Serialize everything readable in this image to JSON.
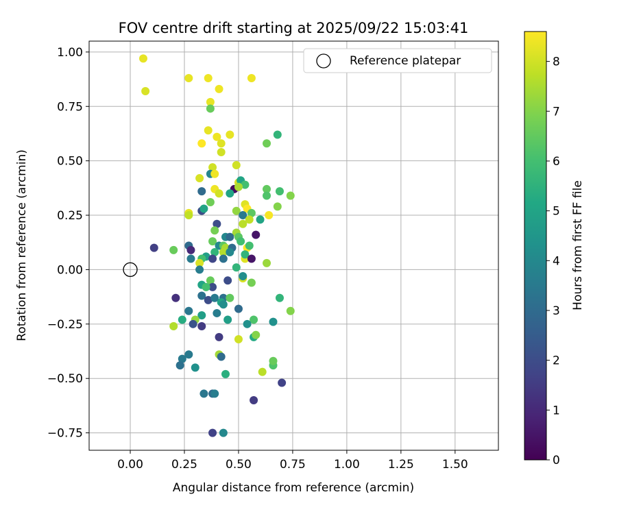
{
  "chart_data": {
    "type": "scatter",
    "title": "FOV centre drift starting at 2025/09/22 15:03:41",
    "xlabel": "Angular distance from reference (arcmin)",
    "ylabel": "Rotation from reference (arcmin)",
    "xlim": [
      -0.19,
      1.7
    ],
    "ylim": [
      -0.83,
      1.05
    ],
    "xticks": [
      0.0,
      0.25,
      0.5,
      0.75,
      1.0,
      1.25,
      1.5
    ],
    "yticks": [
      -0.75,
      -0.5,
      -0.25,
      0.0,
      0.25,
      0.5,
      0.75,
      1.0
    ],
    "xtick_labels": [
      "0.00",
      "0.25",
      "0.50",
      "0.75",
      "1.00",
      "1.25",
      "1.50"
    ],
    "ytick_labels": [
      "−0.75",
      "−0.50",
      "−0.25",
      "0.00",
      "0.25",
      "0.50",
      "0.75",
      "1.00"
    ],
    "grid": true,
    "legend": {
      "position": "upper-right",
      "label": "Reference platepar"
    },
    "reference_point": {
      "x": 0.0,
      "y": 0.0
    },
    "colorbar": {
      "label": "Hours from first FF file",
      "range": [
        0,
        8.6
      ],
      "ticks": [
        0,
        1,
        2,
        3,
        4,
        5,
        6,
        7,
        8
      ],
      "tick_labels": [
        "0",
        "1",
        "2",
        "3",
        "4",
        "5",
        "6",
        "7",
        "8"
      ],
      "colormap": "viridis"
    },
    "points": [
      {
        "x": 0.06,
        "y": 0.97,
        "h": 8.3
      },
      {
        "x": 0.07,
        "y": 0.82,
        "h": 8.1
      },
      {
        "x": 0.27,
        "y": 0.88,
        "h": 8.3
      },
      {
        "x": 0.36,
        "y": 0.88,
        "h": 8.4
      },
      {
        "x": 0.56,
        "y": 0.88,
        "h": 8.4
      },
      {
        "x": 0.41,
        "y": 0.83,
        "h": 8.4
      },
      {
        "x": 0.37,
        "y": 0.77,
        "h": 8.3
      },
      {
        "x": 0.37,
        "y": 0.74,
        "h": 6.6
      },
      {
        "x": 0.36,
        "y": 0.64,
        "h": 8.3
      },
      {
        "x": 0.4,
        "y": 0.61,
        "h": 8.4
      },
      {
        "x": 0.46,
        "y": 0.62,
        "h": 8.3
      },
      {
        "x": 0.33,
        "y": 0.58,
        "h": 8.6
      },
      {
        "x": 0.42,
        "y": 0.58,
        "h": 8.2
      },
      {
        "x": 0.42,
        "y": 0.54,
        "h": 8.0
      },
      {
        "x": 0.63,
        "y": 0.58,
        "h": 6.7
      },
      {
        "x": 0.68,
        "y": 0.62,
        "h": 5.6
      },
      {
        "x": 0.38,
        "y": 0.47,
        "h": 8.0
      },
      {
        "x": 0.49,
        "y": 0.48,
        "h": 8.0
      },
      {
        "x": 0.37,
        "y": 0.44,
        "h": 3.9
      },
      {
        "x": 0.39,
        "y": 0.44,
        "h": 8.4
      },
      {
        "x": 0.32,
        "y": 0.42,
        "h": 8.1
      },
      {
        "x": 0.5,
        "y": 0.4,
        "h": 8.1
      },
      {
        "x": 0.51,
        "y": 0.41,
        "h": 5.0
      },
      {
        "x": 0.53,
        "y": 0.39,
        "h": 6.0
      },
      {
        "x": 0.48,
        "y": 0.37,
        "h": 0.3
      },
      {
        "x": 0.39,
        "y": 0.37,
        "h": 8.4
      },
      {
        "x": 0.41,
        "y": 0.35,
        "h": 8.0
      },
      {
        "x": 0.46,
        "y": 0.35,
        "h": 5.0
      },
      {
        "x": 0.33,
        "y": 0.36,
        "h": 3.0
      },
      {
        "x": 0.5,
        "y": 0.38,
        "h": 7.5
      },
      {
        "x": 0.63,
        "y": 0.37,
        "h": 6.5
      },
      {
        "x": 0.69,
        "y": 0.36,
        "h": 6.0
      },
      {
        "x": 0.63,
        "y": 0.34,
        "h": 6.2
      },
      {
        "x": 0.74,
        "y": 0.34,
        "h": 7.0
      },
      {
        "x": 0.37,
        "y": 0.31,
        "h": 6.7
      },
      {
        "x": 0.53,
        "y": 0.3,
        "h": 8.2
      },
      {
        "x": 0.54,
        "y": 0.28,
        "h": 8.6
      },
      {
        "x": 0.68,
        "y": 0.29,
        "h": 7.0
      },
      {
        "x": 0.33,
        "y": 0.27,
        "h": 2.0
      },
      {
        "x": 0.34,
        "y": 0.28,
        "h": 5.0
      },
      {
        "x": 0.49,
        "y": 0.27,
        "h": 7.2
      },
      {
        "x": 0.52,
        "y": 0.25,
        "h": 3.5
      },
      {
        "x": 0.56,
        "y": 0.26,
        "h": 6.4
      },
      {
        "x": 0.27,
        "y": 0.26,
        "h": 8.3
      },
      {
        "x": 0.27,
        "y": 0.25,
        "h": 7.8
      },
      {
        "x": 0.64,
        "y": 0.25,
        "h": 8.5
      },
      {
        "x": 0.6,
        "y": 0.23,
        "h": 5.0
      },
      {
        "x": 0.55,
        "y": 0.23,
        "h": 7.8
      },
      {
        "x": 0.52,
        "y": 0.21,
        "h": 7.7
      },
      {
        "x": 0.4,
        "y": 0.21,
        "h": 2.0
      },
      {
        "x": 0.39,
        "y": 0.18,
        "h": 6.8
      },
      {
        "x": 0.49,
        "y": 0.17,
        "h": 7.4
      },
      {
        "x": 0.58,
        "y": 0.16,
        "h": 0.5
      },
      {
        "x": 0.44,
        "y": 0.15,
        "h": 4.0
      },
      {
        "x": 0.46,
        "y": 0.15,
        "h": 3.0
      },
      {
        "x": 0.5,
        "y": 0.15,
        "h": 6.4
      },
      {
        "x": 0.38,
        "y": 0.13,
        "h": 6.6
      },
      {
        "x": 0.51,
        "y": 0.13,
        "h": 6.0
      },
      {
        "x": 0.11,
        "y": 0.1,
        "h": 1.6
      },
      {
        "x": 0.27,
        "y": 0.11,
        "h": 3.0
      },
      {
        "x": 0.41,
        "y": 0.11,
        "h": 4.0
      },
      {
        "x": 0.43,
        "y": 0.11,
        "h": 6.4
      },
      {
        "x": 0.44,
        "y": 0.1,
        "h": 7.5
      },
      {
        "x": 0.47,
        "y": 0.1,
        "h": 3.0
      },
      {
        "x": 0.54,
        "y": 0.1,
        "h": 8.6
      },
      {
        "x": 0.55,
        "y": 0.11,
        "h": 6.0
      },
      {
        "x": 0.2,
        "y": 0.09,
        "h": 6.6
      },
      {
        "x": 0.28,
        "y": 0.09,
        "h": 1.0
      },
      {
        "x": 0.39,
        "y": 0.08,
        "h": 5.6
      },
      {
        "x": 0.43,
        "y": 0.08,
        "h": 7.6
      },
      {
        "x": 0.46,
        "y": 0.08,
        "h": 4.0
      },
      {
        "x": 0.35,
        "y": 0.06,
        "h": 4.8
      },
      {
        "x": 0.33,
        "y": 0.05,
        "h": 6.0
      },
      {
        "x": 0.28,
        "y": 0.05,
        "h": 3.5
      },
      {
        "x": 0.38,
        "y": 0.05,
        "h": 1.8
      },
      {
        "x": 0.43,
        "y": 0.05,
        "h": 3.2
      },
      {
        "x": 0.53,
        "y": 0.05,
        "h": 8.2
      },
      {
        "x": 0.53,
        "y": 0.07,
        "h": 5.6
      },
      {
        "x": 0.56,
        "y": 0.05,
        "h": 0.5
      },
      {
        "x": 0.32,
        "y": 0.03,
        "h": 8.1
      },
      {
        "x": 0.63,
        "y": 0.03,
        "h": 7.3
      },
      {
        "x": 0.49,
        "y": 0.01,
        "h": 5.6
      },
      {
        "x": 0.32,
        "y": 0.0,
        "h": 3.6
      },
      {
        "x": 0.52,
        "y": -0.04,
        "h": 8.1
      },
      {
        "x": 0.52,
        "y": -0.03,
        "h": 4.2
      },
      {
        "x": 0.33,
        "y": -0.07,
        "h": 5.0
      },
      {
        "x": 0.37,
        "y": -0.05,
        "h": 6.6
      },
      {
        "x": 0.38,
        "y": -0.08,
        "h": 2.0
      },
      {
        "x": 0.35,
        "y": -0.08,
        "h": 6.0
      },
      {
        "x": 0.45,
        "y": -0.05,
        "h": 2.0
      },
      {
        "x": 0.56,
        "y": -0.06,
        "h": 6.8
      },
      {
        "x": 0.33,
        "y": -0.12,
        "h": 3.2
      },
      {
        "x": 0.36,
        "y": -0.14,
        "h": 2.0
      },
      {
        "x": 0.39,
        "y": -0.13,
        "h": 3.5
      },
      {
        "x": 0.43,
        "y": -0.13,
        "h": 3.2
      },
      {
        "x": 0.46,
        "y": -0.13,
        "h": 6.5
      },
      {
        "x": 0.42,
        "y": -0.15,
        "h": 5.0
      },
      {
        "x": 0.43,
        "y": -0.16,
        "h": 4.2
      },
      {
        "x": 0.5,
        "y": -0.18,
        "h": 3.0
      },
      {
        "x": 0.69,
        "y": -0.13,
        "h": 5.6
      },
      {
        "x": 0.74,
        "y": -0.19,
        "h": 7.0
      },
      {
        "x": 0.21,
        "y": -0.13,
        "h": 1.2
      },
      {
        "x": 0.27,
        "y": -0.19,
        "h": 3.4
      },
      {
        "x": 0.33,
        "y": -0.21,
        "h": 4.8
      },
      {
        "x": 0.4,
        "y": -0.2,
        "h": 3.6
      },
      {
        "x": 0.45,
        "y": -0.23,
        "h": 4.8
      },
      {
        "x": 0.57,
        "y": -0.23,
        "h": 6.2
      },
      {
        "x": 0.54,
        "y": -0.25,
        "h": 4.3
      },
      {
        "x": 0.66,
        "y": -0.24,
        "h": 4.3
      },
      {
        "x": 0.24,
        "y": -0.23,
        "h": 5.3
      },
      {
        "x": 0.3,
        "y": -0.23,
        "h": 7.2
      },
      {
        "x": 0.29,
        "y": -0.25,
        "h": 2.2
      },
      {
        "x": 0.33,
        "y": -0.26,
        "h": 1.5
      },
      {
        "x": 0.2,
        "y": -0.26,
        "h": 7.6
      },
      {
        "x": 0.41,
        "y": -0.31,
        "h": 1.5
      },
      {
        "x": 0.5,
        "y": -0.32,
        "h": 8.0
      },
      {
        "x": 0.57,
        "y": -0.31,
        "h": 5.2
      },
      {
        "x": 0.58,
        "y": -0.3,
        "h": 7.0
      },
      {
        "x": 0.41,
        "y": -0.39,
        "h": 7.4
      },
      {
        "x": 0.42,
        "y": -0.4,
        "h": 3.0
      },
      {
        "x": 0.24,
        "y": -0.41,
        "h": 3.5
      },
      {
        "x": 0.27,
        "y": -0.39,
        "h": 3.5
      },
      {
        "x": 0.23,
        "y": -0.44,
        "h": 3.2
      },
      {
        "x": 0.3,
        "y": -0.45,
        "h": 4.3
      },
      {
        "x": 0.44,
        "y": -0.48,
        "h": 5.4
      },
      {
        "x": 0.61,
        "y": -0.47,
        "h": 7.7
      },
      {
        "x": 0.66,
        "y": -0.44,
        "h": 6.2
      },
      {
        "x": 0.66,
        "y": -0.42,
        "h": 6.6
      },
      {
        "x": 0.34,
        "y": -0.57,
        "h": 3.4
      },
      {
        "x": 0.38,
        "y": -0.57,
        "h": 3.0
      },
      {
        "x": 0.39,
        "y": -0.57,
        "h": 3.6
      },
      {
        "x": 0.57,
        "y": -0.6,
        "h": 1.5
      },
      {
        "x": 0.7,
        "y": -0.52,
        "h": 1.7
      },
      {
        "x": 0.38,
        "y": -0.75,
        "h": 1.7
      },
      {
        "x": 0.43,
        "y": -0.75,
        "h": 4.0
      }
    ]
  }
}
